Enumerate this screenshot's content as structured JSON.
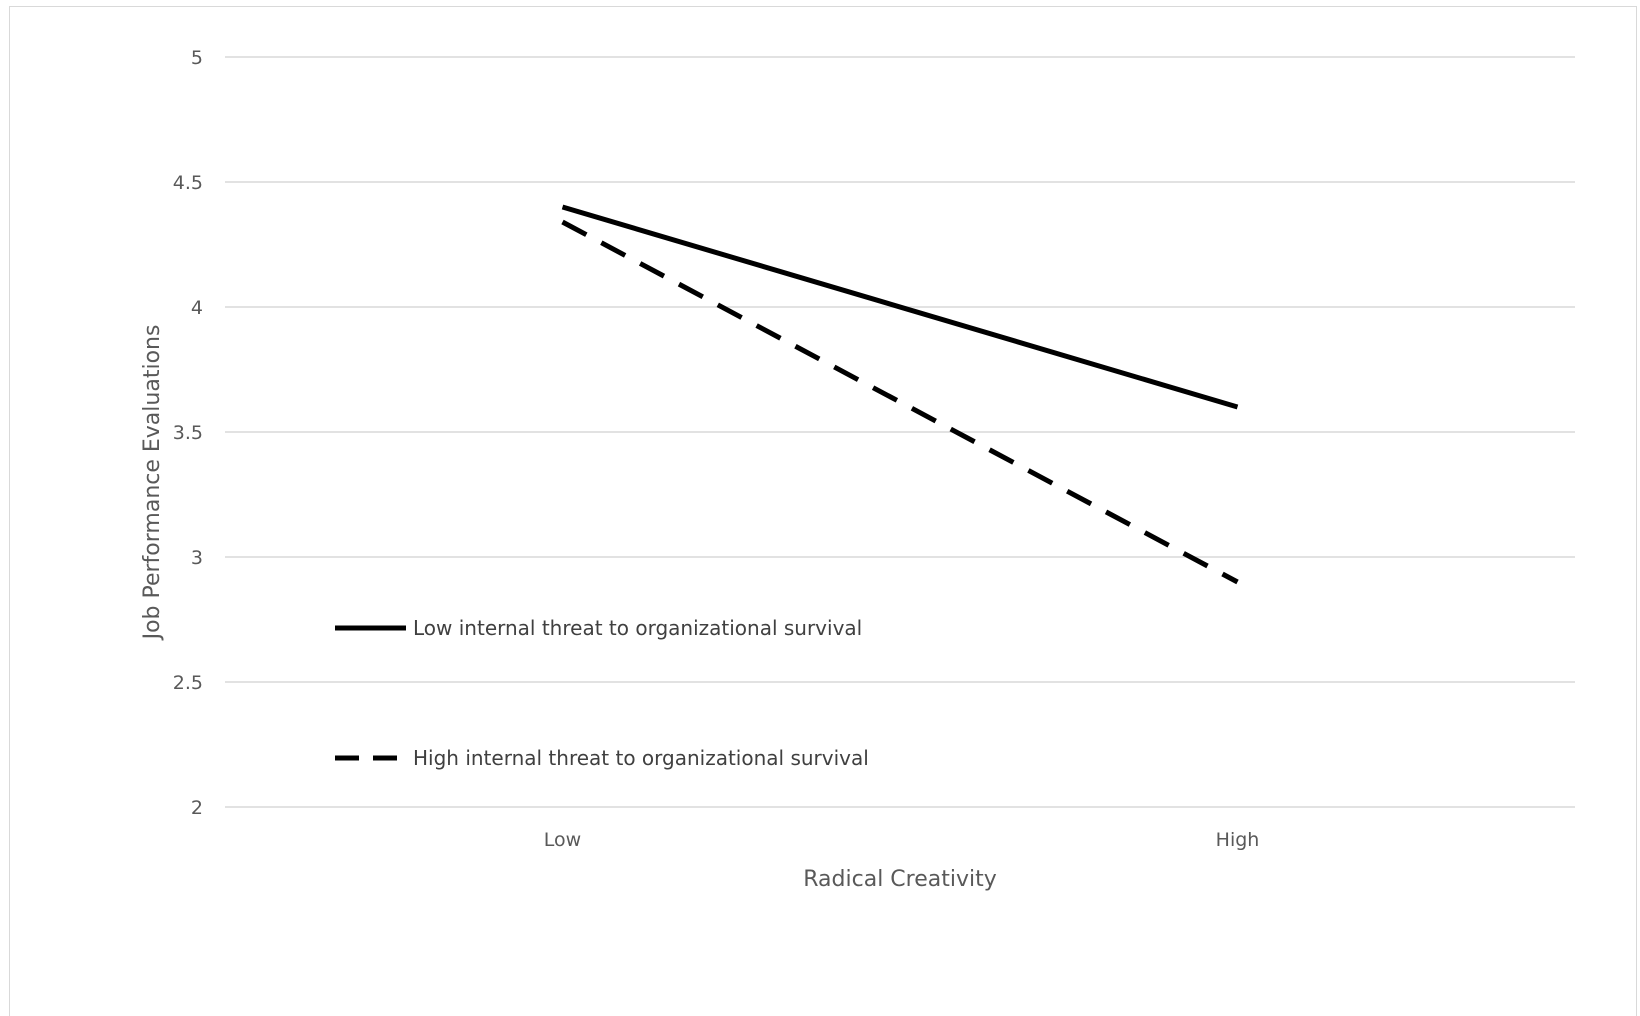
{
  "chart_data": {
    "type": "line",
    "title": "",
    "xlabel": "Radical Creativity",
    "ylabel": "Job Performance Evaluations",
    "categories": [
      "Low",
      "High"
    ],
    "ylim": [
      2,
      5
    ],
    "yticks": [
      "2",
      "2.5",
      "3",
      "3.5",
      "4",
      "4.5",
      "5"
    ],
    "grid": true,
    "legend_position": "lower-left",
    "series": [
      {
        "name": "Low internal threat to organizational survival",
        "values": [
          4.4,
          3.6
        ],
        "style": "solid",
        "color": "#000000"
      },
      {
        "name": "High internal threat to organizational survival",
        "values": [
          4.34,
          2.9
        ],
        "style": "dashed",
        "color": "#000000"
      }
    ]
  }
}
